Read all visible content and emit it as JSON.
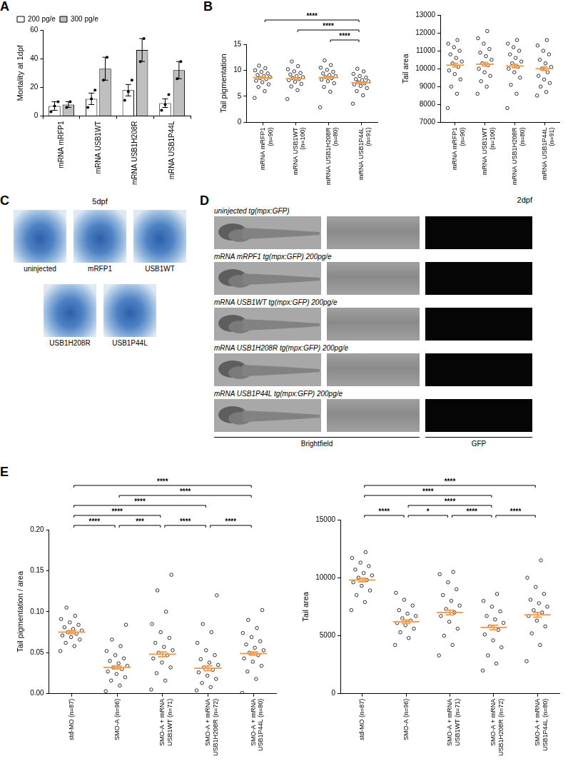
{
  "chart_data": [
    {
      "panel": "A",
      "type": "bar",
      "categories": [
        "mRNA mRFP1",
        "mRNA USB1WT",
        "mRNA USB1H208R",
        "mRNA USB1P44L"
      ],
      "series": [
        {
          "name": "200 pg/e",
          "color": "#ffffff",
          "values": [
            7,
            12,
            18,
            9
          ],
          "errors": [
            3,
            4,
            4,
            3
          ],
          "points": [
            [
              3,
              7,
              10
            ],
            [
              6,
              12,
              18
            ],
            [
              11,
              17,
              25
            ],
            [
              4,
              8,
              15
            ]
          ]
        },
        {
          "name": "300 pg/e",
          "color": "#bfbfbf",
          "values": [
            8,
            33,
            46,
            32
          ],
          "errors": [
            2,
            8,
            8,
            6
          ],
          "points": [
            [
              6,
              10
            ],
            [
              25,
              41
            ],
            [
              38,
              54
            ],
            [
              26,
              38
            ]
          ]
        }
      ],
      "y_label": "Mortality at 1dpf",
      "ylim": [
        0,
        60
      ],
      "yticks": [
        0,
        20,
        40,
        60
      ],
      "grid": false,
      "legend": "top-left"
    },
    {
      "panel": "B",
      "type": "strip",
      "categories": [
        "mRNA mRFP1 (n=90)",
        "mRNA USB1WT (n=100)",
        "mRNA USB1H208R (n=80)",
        "mRNA USB1P44L (n=91)"
      ],
      "groups": [
        {
          "values": [
            4.7,
            6.0,
            6.8,
            7.3,
            7.7,
            8.0,
            8.3,
            8.5,
            8.7,
            8.9,
            9.1,
            9.4,
            9.7,
            10.0,
            10.4,
            10.9
          ],
          "mean": 8.6,
          "sem": 0.15
        },
        {
          "values": [
            4.5,
            6.2,
            6.9,
            7.4,
            7.8,
            8.1,
            8.3,
            8.5,
            8.7,
            8.9,
            9.2,
            9.5,
            9.8,
            10.2,
            10.8,
            11.7
          ],
          "mean": 8.4,
          "sem": 0.15
        },
        {
          "values": [
            2.9,
            5.9,
            6.8,
            7.5,
            7.9,
            8.2,
            8.5,
            8.7,
            8.9,
            9.1,
            9.4,
            9.7,
            10.1,
            10.5,
            11.0,
            11.9
          ],
          "mean": 8.6,
          "sem": 0.15
        },
        {
          "values": [
            3.6,
            5.2,
            6.0,
            6.6,
            7.0,
            7.3,
            7.5,
            7.7,
            7.9,
            8.1,
            8.3,
            8.6,
            8.9,
            9.3,
            9.8,
            10.3
          ],
          "mean": 7.6,
          "sem": 0.15
        }
      ],
      "color": "#000000",
      "marker": "circle",
      "y_label": "Tail pigmentation",
      "ylim": [
        0,
        15
      ],
      "yticks": [
        0,
        5,
        10,
        15
      ],
      "grid": false,
      "comparisons": [
        {
          "from": 2,
          "to": 3,
          "label": "****"
        },
        {
          "from": 1,
          "to": 3,
          "label": "****"
        },
        {
          "from": 0,
          "to": 3,
          "label": "****"
        }
      ]
    },
    {
      "type": "strip",
      "categories": [
        "mRNA mRFP1 (n=90)",
        "mRNA USB1WT (n=100)",
        "mRNA USB1H208R (n=80)",
        "mRNA USB1P44L (n=91)"
      ],
      "groups": [
        {
          "values": [
            7800,
            8600,
            9000,
            9400,
            9700,
            9900,
            10100,
            10300,
            10400,
            10600,
            10800,
            11000,
            11200,
            11400,
            11600
          ],
          "mean": 10200,
          "sem": 100
        },
        {
          "values": [
            8600,
            9000,
            9300,
            9600,
            9800,
            10000,
            10200,
            10300,
            10500,
            10700,
            10900,
            11100,
            11400,
            11700,
            12100
          ],
          "mean": 10250,
          "sem": 100
        },
        {
          "values": [
            7800,
            8600,
            9100,
            9500,
            9800,
            10000,
            10100,
            10300,
            10400,
            10600,
            10800,
            11000,
            11200,
            11400,
            11600
          ],
          "mean": 10150,
          "sem": 100
        },
        {
          "values": [
            8500,
            8700,
            9000,
            9200,
            9400,
            9600,
            9800,
            10000,
            10100,
            10300,
            10500,
            10800,
            11000,
            11300,
            11600
          ],
          "mean": 10000,
          "sem": 100
        }
      ],
      "color": "#000000",
      "marker": "circle",
      "y_label": "Tail area",
      "ylim": [
        7000,
        13000
      ],
      "yticks": [
        7000,
        8000,
        9000,
        10000,
        11000,
        12000,
        13000
      ],
      "grid": false
    },
    {
      "panel": "E",
      "type": "strip",
      "categories": [
        "std-MO (n=87)",
        "SMO-A (n=96)",
        "SMO-A + mRNA USB1WT (n=71)",
        "SMO-A + mRNA USB1H208R (n=72)",
        "SMO-A + mRNA USB1P44L (n=80)"
      ],
      "groups": [
        {
          "values": [
            0.052,
            0.058,
            0.062,
            0.066,
            0.069,
            0.071,
            0.073,
            0.075,
            0.077,
            0.079,
            0.081,
            0.084,
            0.087,
            0.091,
            0.095,
            0.105
          ],
          "mean": 0.075,
          "sem": 0.002
        },
        {
          "values": [
            0.003,
            0.01,
            0.016,
            0.02,
            0.024,
            0.027,
            0.03,
            0.032,
            0.034,
            0.037,
            0.04,
            0.043,
            0.047,
            0.052,
            0.058,
            0.066,
            0.084
          ],
          "mean": 0.032,
          "sem": 0.002
        },
        {
          "values": [
            0.005,
            0.016,
            0.025,
            0.032,
            0.038,
            0.043,
            0.047,
            0.05,
            0.053,
            0.057,
            0.062,
            0.068,
            0.075,
            0.085,
            0.1,
            0.126,
            0.145
          ],
          "mean": 0.048,
          "sem": 0.003
        },
        {
          "values": [
            0.004,
            0.008,
            0.013,
            0.018,
            0.022,
            0.026,
            0.029,
            0.032,
            0.035,
            0.038,
            0.042,
            0.047,
            0.053,
            0.062,
            0.075,
            0.085,
            0.12
          ],
          "mean": 0.031,
          "sem": 0.003
        },
        {
          "values": [
            0.001,
            0.018,
            0.027,
            0.034,
            0.039,
            0.043,
            0.047,
            0.05,
            0.053,
            0.056,
            0.06,
            0.064,
            0.069,
            0.074,
            0.08,
            0.09,
            0.102
          ],
          "mean": 0.049,
          "sem": 0.002
        }
      ],
      "color": "#000000",
      "marker": "circle",
      "y_label": "Tail pigmentation / area",
      "ylim": [
        0,
        0.2
      ],
      "yticks": [
        {
          "value": 0,
          "label": "0.00"
        },
        {
          "value": 0.05,
          "label": "0.05"
        },
        {
          "value": 0.1,
          "label": "0.10"
        },
        {
          "value": 0.15,
          "label": "0.15"
        },
        {
          "value": 0.2,
          "label": "0.20"
        }
      ],
      "grid": false,
      "comparisons": [
        {
          "from": 0,
          "to": 1,
          "label": "****"
        },
        {
          "from": 1,
          "to": 2,
          "label": "***"
        },
        {
          "from": 2,
          "to": 3,
          "label": "****"
        },
        {
          "from": 3,
          "to": 4,
          "label": "****"
        },
        {
          "from": 0,
          "to": 2,
          "label": "****"
        },
        {
          "from": 0,
          "to": 3,
          "label": "****"
        },
        {
          "from": 1,
          "to": 4,
          "label": "****"
        },
        {
          "from": 0,
          "to": 4,
          "label": "****"
        }
      ]
    },
    {
      "type": "strip",
      "categories": [
        "std-MO (n=87)",
        "SMO-A (n=96)",
        "SMO-A + mRNA USB1WT (n=71)",
        "SMO-A + mRNA USB1H208R (n=72)",
        "SMO-A + mRNA USB1P44L (n=80)"
      ],
      "groups": [
        {
          "values": [
            7200,
            7900,
            8500,
            8900,
            9300,
            9600,
            9800,
            10000,
            10200,
            10400,
            10700,
            11000,
            11300,
            11700,
            12200
          ],
          "mean": 9800,
          "sem": 150
        },
        {
          "values": [
            4200,
            4800,
            5300,
            5600,
            5900,
            6100,
            6300,
            6500,
            6700,
            6900,
            7200,
            7600,
            8100,
            8700
          ],
          "mean": 6200,
          "sem": 150
        },
        {
          "values": [
            3300,
            4200,
            5000,
            5600,
            6200,
            6700,
            7000,
            7300,
            7600,
            8000,
            8500,
            9000,
            9600,
            10300,
            10500
          ],
          "mean": 7000,
          "sem": 200
        },
        {
          "values": [
            2000,
            2600,
            3300,
            4000,
            4600,
            5100,
            5500,
            5800,
            6100,
            6400,
            6700,
            7100,
            7500,
            8000,
            8600
          ],
          "mean": 5700,
          "sem": 200
        },
        {
          "values": [
            2800,
            4200,
            5200,
            5800,
            6300,
            6700,
            7000,
            7200,
            7500,
            7800,
            8100,
            8600,
            9200,
            10000,
            11500
          ],
          "mean": 6800,
          "sem": 200
        }
      ],
      "color": "#000000",
      "marker": "circle",
      "y_label": "Tail area",
      "ylim": [
        0,
        15000
      ],
      "yticks": [
        0,
        5000,
        10000,
        15000
      ],
      "grid": false,
      "comparisons": [
        {
          "from": 0,
          "to": 1,
          "label": "****"
        },
        {
          "from": 1,
          "to": 2,
          "label": "*"
        },
        {
          "from": 2,
          "to": 3,
          "label": "****"
        },
        {
          "from": 3,
          "to": 4,
          "label": "****"
        },
        {
          "from": 1,
          "to": 3,
          "label": "****"
        },
        {
          "from": 0,
          "to": 3,
          "label": "****"
        },
        {
          "from": 0,
          "to": 4,
          "label": "****"
        }
      ]
    }
  ],
  "images": [
    {
      "panel": "C",
      "title": "5dpf",
      "items": [
        "uninjected",
        "mRFP1",
        "USB1WT",
        "USB1H208R",
        "USB1P44L"
      ]
    },
    {
      "panel": "D",
      "title": "2dpf",
      "rows": [
        "uninjected tg(mpx:GFP)",
        "mRNA mRPF1 tg(mpx:GFP) 200pg/e",
        "mRNA USB1WT tg(mpx:GFP) 200pg/e",
        "mRNA USB1H208R tg(mpx:GFP) 200pg/e",
        "mRNA USB1P44L tg(mpx:GFP) 200pg/e"
      ],
      "columns": [
        "Brightfield",
        "GFP"
      ]
    }
  ]
}
